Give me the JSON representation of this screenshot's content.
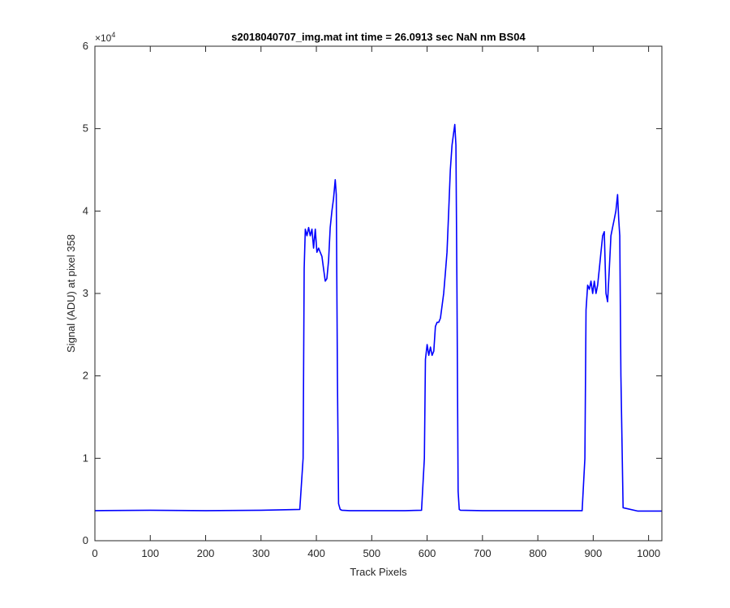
{
  "chart_data": {
    "type": "line",
    "title": "s2018040707_img.mat int time = 26.0913 sec  NaN nm BS04",
    "xlabel": "Track Pixels",
    "ylabel": "Signal (ADU) at pixel 358",
    "xlim": [
      0,
      1024
    ],
    "ylim": [
      0,
      60000
    ],
    "x_ticks": [
      0,
      100,
      200,
      300,
      400,
      500,
      600,
      700,
      800,
      900,
      1000
    ],
    "y_ticks": [
      0,
      10000,
      20000,
      30000,
      40000,
      50000,
      60000
    ],
    "y_tick_labels": [
      "0",
      "1",
      "2",
      "3",
      "4",
      "5",
      "6"
    ],
    "y_exponent_label": "×10",
    "y_exponent_power": "4",
    "grid": false,
    "color": "#0000FF",
    "series": [
      {
        "x": [
          0,
          100,
          200,
          300,
          370,
          376,
          378,
          380,
          383,
          386,
          389,
          392,
          395,
          398,
          401,
          404,
          407,
          410,
          413,
          416,
          419,
          422,
          425,
          428,
          431,
          434,
          436,
          438,
          440,
          443,
          446,
          460,
          500,
          560,
          590,
          595,
          597,
          600,
          603,
          606,
          609,
          612,
          615,
          618,
          621,
          624,
          627,
          630,
          633,
          636,
          639,
          642,
          645,
          648,
          650,
          652,
          654,
          656,
          658,
          660,
          700,
          800,
          880,
          885,
          887,
          890,
          893,
          896,
          899,
          902,
          905,
          908,
          911,
          914,
          917,
          920,
          923,
          926,
          929,
          932,
          935,
          938,
          941,
          944,
          946,
          948,
          950,
          954,
          980,
          1024
        ],
        "y": [
          3650,
          3700,
          3650,
          3700,
          3800,
          10000,
          33000,
          37800,
          37000,
          38000,
          37000,
          37800,
          35500,
          37800,
          35000,
          35500,
          35000,
          34500,
          33000,
          31500,
          31800,
          34000,
          38000,
          40000,
          41500,
          43800,
          42000,
          20000,
          4500,
          3800,
          3700,
          3650,
          3650,
          3650,
          3700,
          10000,
          22000,
          23800,
          22500,
          23500,
          22500,
          23000,
          26000,
          26500,
          26500,
          27000,
          28500,
          30000,
          32500,
          35000,
          40000,
          45000,
          48000,
          49500,
          50500,
          48000,
          30000,
          6000,
          3800,
          3700,
          3650,
          3650,
          3650,
          10000,
          28000,
          31000,
          30500,
          31500,
          30000,
          31500,
          30000,
          31000,
          33000,
          35000,
          37000,
          37500,
          30000,
          29000,
          33000,
          37000,
          38000,
          39000,
          40000,
          42000,
          39000,
          37000,
          20000,
          4000,
          3600,
          3600
        ]
      }
    ]
  }
}
